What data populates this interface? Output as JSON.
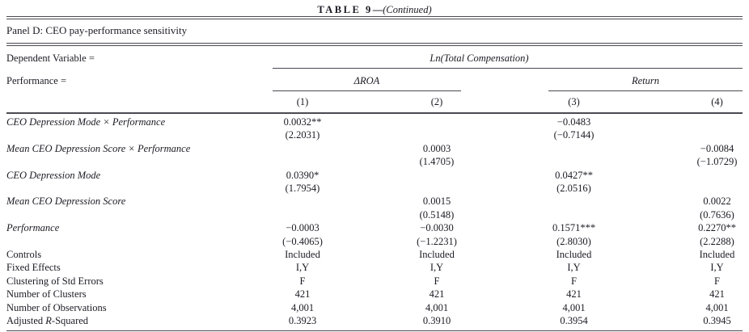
{
  "title": {
    "label": "TABLE 9",
    "dash": "—",
    "continued": "(Continued)"
  },
  "panel_title": "Panel D: CEO pay-performance sensitivity",
  "header": {
    "dependent_variable_label": "Dependent Variable =",
    "dependent_variable_value": "Ln(Total Compensation)",
    "performance_label": "Performance =",
    "group_labels": [
      "ΔROA",
      "Return"
    ],
    "column_numbers": [
      "(1)",
      "(2)",
      "(3)",
      "(4)"
    ]
  },
  "colors": {
    "text": "#1b1b24",
    "rule": "#4a4a52",
    "background": "#ffffff"
  },
  "rows": [
    {
      "label": "CEO Depression Mode × Performance",
      "cells": [
        "0.0032**",
        "",
        "−0.0483",
        ""
      ]
    },
    {
      "label": "",
      "cells": [
        "(2.2031)",
        "",
        "(−0.7144)",
        ""
      ]
    },
    {
      "label": "Mean CEO Depression Score × Performance",
      "cells": [
        "",
        "0.0003",
        "",
        "−0.0084"
      ]
    },
    {
      "label": "",
      "cells": [
        "",
        "(1.4705)",
        "",
        "(−1.0729)"
      ]
    },
    {
      "label": "CEO Depression Mode",
      "cells": [
        "0.0390*",
        "",
        "0.0427**",
        ""
      ]
    },
    {
      "label": "",
      "cells": [
        "(1.7954)",
        "",
        "(2.0516)",
        ""
      ]
    },
    {
      "label": "Mean CEO Depression Score",
      "cells": [
        "",
        "0.0015",
        "",
        "0.0022"
      ]
    },
    {
      "label": "",
      "cells": [
        "",
        "(0.5148)",
        "",
        "(0.7636)"
      ]
    },
    {
      "label": "Performance",
      "cells": [
        "−0.0003",
        "−0.0030",
        "0.1571***",
        "0.2270**"
      ]
    },
    {
      "label": "",
      "cells": [
        "(−0.4065)",
        "(−1.2231)",
        "(2.8030)",
        "(2.2288)"
      ]
    },
    {
      "label": "Controls",
      "cells": [
        "Included",
        "Included",
        "Included",
        "Included"
      ]
    },
    {
      "label": "Fixed Effects",
      "cells": [
        "I,Y",
        "I,Y",
        "I,Y",
        "I,Y"
      ]
    },
    {
      "label": "Clustering of Std Errors",
      "cells": [
        "F",
        "F",
        "F",
        "F"
      ]
    },
    {
      "label": "Number of Clusters",
      "cells": [
        "421",
        "421",
        "421",
        "421"
      ]
    },
    {
      "label": "Number of Observations",
      "cells": [
        "4,001",
        "4,001",
        "4,001",
        "4,001"
      ]
    },
    {
      "label_parts": [
        "Adjusted ",
        "R",
        "-Squared"
      ],
      "cells": [
        "0.3923",
        "0.3910",
        "0.3954",
        "0.3945"
      ]
    }
  ]
}
